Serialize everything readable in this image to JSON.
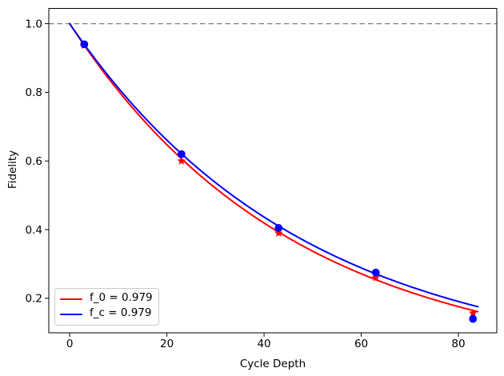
{
  "chart_data": {
    "type": "line",
    "title": "",
    "xlabel": "Cycle Depth",
    "ylabel": "Fidelity",
    "xlim": [
      -4.3,
      87.9
    ],
    "ylim": [
      0.0995,
      1.0445
    ],
    "xticks": [
      0,
      20,
      40,
      60,
      80
    ],
    "yticks": [
      0.2,
      0.4,
      0.6,
      0.8,
      1.0
    ],
    "grid": false,
    "background": "#ffffff",
    "reference_line": {
      "y": 1.0,
      "color": "#808080",
      "style": "dashed"
    },
    "series": [
      {
        "name": "f_0 = 0.979",
        "color": "#ff0000",
        "marker": "star",
        "line": "solid",
        "fit": {
          "model": "y = a * p^x",
          "a": 1.0,
          "p": 0.9785,
          "x_range": [
            0,
            84
          ]
        },
        "points": {
          "x": [
            3,
            23,
            43,
            63,
            83
          ],
          "y": [
            0.937,
            0.6,
            0.39,
            0.26,
            0.157
          ]
        }
      },
      {
        "name": "f_c = 0.979",
        "color": "#0000ff",
        "marker": "circle",
        "line": "solid",
        "fit": {
          "model": "y = a * p^x",
          "a": 1.0,
          "p": 0.9795,
          "x_range": [
            0,
            84
          ]
        },
        "points": {
          "x": [
            3,
            23,
            43,
            63,
            83
          ],
          "y": [
            0.94,
            0.62,
            0.405,
            0.275,
            0.14
          ]
        }
      }
    ],
    "legend": {
      "position": "lower-left",
      "entries": [
        {
          "label": "f_0 = 0.979",
          "color": "#ff0000"
        },
        {
          "label": "f_c = 0.979",
          "color": "#0000ff"
        }
      ]
    }
  }
}
